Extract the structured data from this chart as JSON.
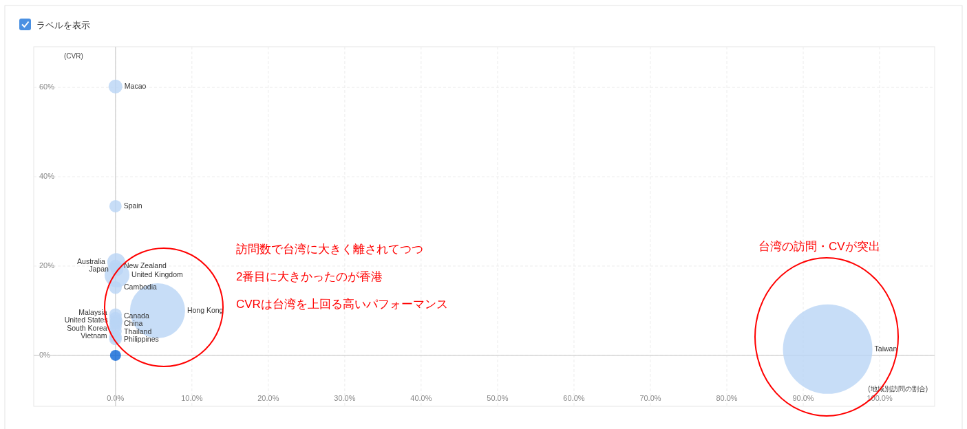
{
  "chart_data": {
    "type": "bubble",
    "xlabel": "(地域別訪問の割合)",
    "ylabel": "(CVR)",
    "xlim": [
      -10.7,
      107.2
    ],
    "ylim": [
      -11.4,
      69.1
    ],
    "xticks": [
      {
        "value": 0,
        "label": "0.0%"
      },
      {
        "value": 10,
        "label": "10.0%"
      },
      {
        "value": 20,
        "label": "20.0%"
      },
      {
        "value": 30,
        "label": "30.0%"
      },
      {
        "value": 40,
        "label": "40.0%"
      },
      {
        "value": 50,
        "label": "50.0%"
      },
      {
        "value": 60,
        "label": "60.0%"
      },
      {
        "value": 70,
        "label": "70.0%"
      },
      {
        "value": 80,
        "label": "80.0%"
      },
      {
        "value": 90,
        "label": "90.0%"
      },
      {
        "value": 100,
        "label": "100.0%"
      }
    ],
    "yticks": [
      {
        "value": 0,
        "label": "0%"
      },
      {
        "value": 20,
        "label": "20%"
      },
      {
        "value": 40,
        "label": "40%"
      },
      {
        "value": 60,
        "label": "60%"
      }
    ],
    "grid": true,
    "series": [
      {
        "name": "Taiwan",
        "color": "#b9d5f5",
        "x": [
          93.2
        ],
        "values": [
          1.4
        ],
        "sizes": [
          1
        ]
      },
      {
        "name": "Hong Kong",
        "color": "#b9d5f5",
        "x": [
          5.5
        ],
        "values": [
          10
        ],
        "sizes": [
          0.38
        ]
      },
      {
        "name": "Macao",
        "color": "#b9d5f5",
        "x": [
          0
        ],
        "values": [
          60.2
        ],
        "sizes": [
          0.024
        ]
      },
      {
        "name": "Spain",
        "color": "#b9d5f5",
        "x": [
          0
        ],
        "values": [
          33.4
        ],
        "sizes": [
          0.019
        ]
      },
      {
        "name": "Australia",
        "color": "#b9d5f5",
        "x": [
          0.1
        ],
        "values": [
          20.9
        ],
        "sizes": [
          0.04
        ]
      },
      {
        "name": "New Zealand",
        "color": "#b9d5f5",
        "x": [
          0
        ],
        "values": [
          20
        ],
        "sizes": [
          0.02
        ]
      },
      {
        "name": "Japan",
        "color": "#b9d5f5",
        "x": [
          0.2
        ],
        "values": [
          19.2
        ],
        "sizes": [
          0.02
        ]
      },
      {
        "name": "United Kingdom",
        "color": "#b9d5f5",
        "x": [
          0.2
        ],
        "values": [
          18
        ],
        "sizes": [
          0.077
        ]
      },
      {
        "name": "Cambodia",
        "color": "#b9d5f5",
        "x": [
          0
        ],
        "values": [
          15.2
        ],
        "sizes": [
          0.02
        ]
      },
      {
        "name": "Malaysia",
        "color": "#b9d5f5",
        "x": [
          0
        ],
        "values": [
          9.1
        ],
        "sizes": [
          0.02
        ]
      },
      {
        "name": "Canada",
        "color": "#b9d5f5",
        "x": [
          0
        ],
        "values": [
          8.3
        ],
        "sizes": [
          0.02
        ]
      },
      {
        "name": "United States",
        "color": "#b9d5f5",
        "x": [
          0.1
        ],
        "values": [
          7.7
        ],
        "sizes": [
          0.02
        ]
      },
      {
        "name": "China",
        "color": "#b9d5f5",
        "x": [
          0
        ],
        "values": [
          7.2
        ],
        "sizes": [
          0.02
        ]
      },
      {
        "name": "South Korea",
        "color": "#b9d5f5",
        "x": [
          0
        ],
        "values": [
          6.5
        ],
        "sizes": [
          0.02
        ]
      },
      {
        "name": "Thailand",
        "color": "#b9d5f5",
        "x": [
          0
        ],
        "values": [
          5.4
        ],
        "sizes": [
          0.02
        ]
      },
      {
        "name": "Vietnam",
        "color": "#b9d5f5",
        "x": [
          0
        ],
        "values": [
          4.2
        ],
        "sizes": [
          0.02
        ]
      },
      {
        "name": "Philippines",
        "color": "#b9d5f5",
        "x": [
          0
        ],
        "values": [
          3.7
        ],
        "sizes": [
          0.02
        ]
      },
      {
        "color": "#0a64d6",
        "x": [
          0
        ],
        "values": [
          0
        ],
        "sizes": [
          0.015
        ]
      }
    ],
    "annotations": [
      "ラベルを表示",
      "訪問数で台湾に大きく離されてつつ",
      "2番目に大きかったのが香港",
      "CVRは台湾を上回る高いパフォーマンス",
      "台湾の訪問・CVが突出"
    ]
  }
}
